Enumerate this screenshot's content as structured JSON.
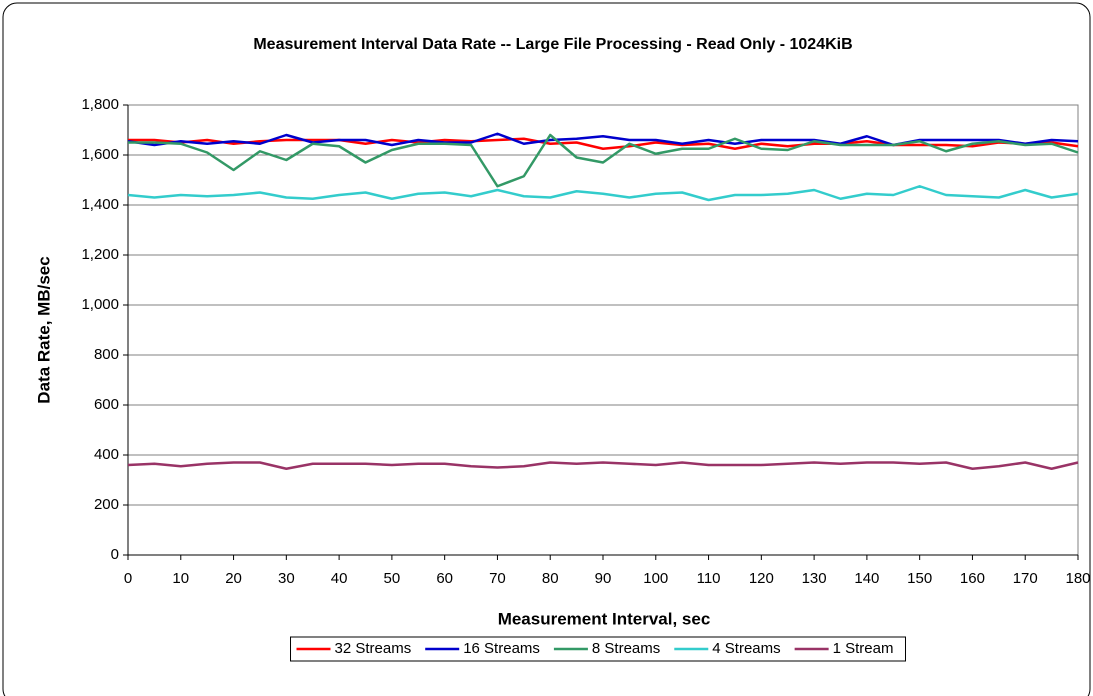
{
  "chart_data": {
    "type": "line",
    "title": "Measurement Interval Data Rate -- Large File Processing - Read Only - 1024KiB",
    "x_label": "Measurement Interval, sec",
    "y_label": "Data Rate, MB/sec",
    "x": [
      0,
      5,
      10,
      15,
      20,
      25,
      30,
      35,
      40,
      45,
      50,
      55,
      60,
      65,
      70,
      75,
      80,
      85,
      90,
      95,
      100,
      105,
      110,
      115,
      120,
      125,
      130,
      135,
      140,
      145,
      150,
      155,
      160,
      165,
      170,
      175,
      180
    ],
    "xlim": [
      0,
      180
    ],
    "xticks": [
      0,
      10,
      20,
      30,
      40,
      50,
      60,
      70,
      80,
      90,
      100,
      110,
      120,
      130,
      140,
      150,
      160,
      170,
      180
    ],
    "ylim": [
      0,
      1800
    ],
    "yticks": [
      0,
      200,
      400,
      600,
      800,
      {
        "value": 1000,
        "label": "1,000"
      },
      {
        "value": 1200,
        "label": "1,200"
      },
      {
        "value": 1400,
        "label": "1,400"
      },
      {
        "value": 1600,
        "label": "1,600"
      },
      {
        "value": 1800,
        "label": "1,800"
      }
    ],
    "grid": true,
    "legend": "bottom",
    "series": [
      {
        "name": "32 Streams",
        "color": "#ff0000",
        "values": [
          1660,
          1660,
          1650,
          1660,
          1645,
          1655,
          1660,
          1660,
          1660,
          1645,
          1660,
          1650,
          1660,
          1655,
          1660,
          1665,
          1645,
          1650,
          1625,
          1635,
          1650,
          1640,
          1645,
          1625,
          1645,
          1635,
          1645,
          1645,
          1655,
          1640,
          1640,
          1640,
          1635,
          1650,
          1645,
          1650,
          1635
        ]
      },
      {
        "name": "16 Streams",
        "color": "#0000cc",
        "values": [
          1655,
          1640,
          1655,
          1645,
          1655,
          1645,
          1680,
          1650,
          1660,
          1660,
          1640,
          1660,
          1650,
          1650,
          1685,
          1645,
          1660,
          1665,
          1675,
          1660,
          1660,
          1645,
          1660,
          1645,
          1660,
          1660,
          1660,
          1645,
          1675,
          1640,
          1660,
          1660,
          1660,
          1660,
          1645,
          1660,
          1655
        ]
      },
      {
        "name": "8 Streams",
        "color": "#339966",
        "values": [
          1650,
          1650,
          1645,
          1610,
          1540,
          1615,
          1580,
          1645,
          1635,
          1570,
          1620,
          1645,
          1645,
          1640,
          1475,
          1515,
          1680,
          1590,
          1570,
          1645,
          1605,
          1625,
          1625,
          1665,
          1625,
          1620,
          1655,
          1640,
          1640,
          1640,
          1655,
          1615,
          1645,
          1655,
          1640,
          1645,
          1610
        ]
      },
      {
        "name": "4 Streams",
        "color": "#33cccc",
        "values": [
          1440,
          1430,
          1440,
          1435,
          1440,
          1450,
          1430,
          1425,
          1440,
          1450,
          1425,
          1445,
          1450,
          1435,
          1460,
          1435,
          1430,
          1455,
          1445,
          1430,
          1445,
          1450,
          1420,
          1440,
          1440,
          1445,
          1460,
          1425,
          1445,
          1440,
          1475,
          1440,
          1435,
          1430,
          1460,
          1430,
          1445
        ]
      },
      {
        "name": "1 Stream",
        "color": "#993366",
        "values": [
          360,
          365,
          355,
          365,
          370,
          370,
          345,
          365,
          365,
          365,
          360,
          365,
          365,
          355,
          350,
          355,
          370,
          365,
          370,
          365,
          360,
          370,
          360,
          360,
          360,
          365,
          370,
          365,
          370,
          370,
          365,
          370,
          345,
          355,
          370,
          345,
          370
        ]
      }
    ]
  }
}
